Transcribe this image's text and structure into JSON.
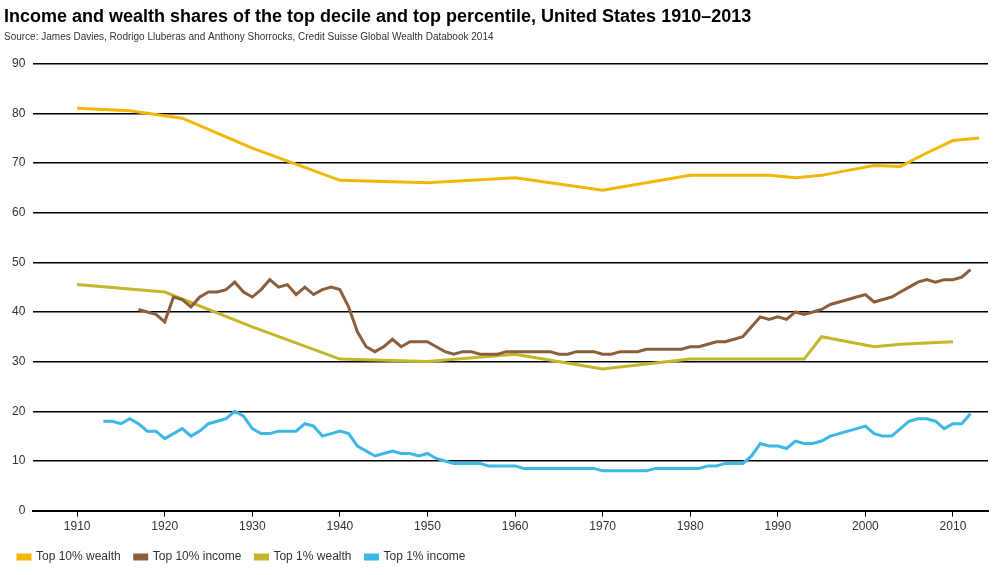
{
  "chart_data": {
    "type": "line",
    "title": "Income and wealth shares of the top decile and top percentile, United States 1910–2013",
    "subtitle": "Source: James Davies, Rodrigo Lluberas and Anthony Shorrocks, Credit Suisse Global Wealth Databook 2014",
    "xlim": [
      1905,
      2014
    ],
    "xticks": [
      1910,
      1920,
      1930,
      1940,
      1950,
      1960,
      1970,
      1980,
      1990,
      2000,
      2010
    ],
    "ylim": [
      0,
      90
    ],
    "yticks": [
      0,
      10,
      20,
      30,
      40,
      50,
      60,
      70,
      80,
      90
    ],
    "grid": true,
    "legend": "bottom",
    "series": [
      {
        "name": "Top 10% wealth",
        "color": "#f2b705",
        "x": [
          1910,
          1916,
          1922,
          1930,
          1940,
          1950,
          1960,
          1970,
          1980,
          1986,
          1989,
          1992,
          1995,
          1998,
          2001,
          2004,
          2007,
          2010,
          2013
        ],
        "values": [
          81,
          80.5,
          79,
          73,
          66.5,
          66,
          67,
          64.5,
          67.5,
          67.5,
          67.5,
          67,
          67.5,
          68.5,
          69.5,
          69.3,
          72,
          74.5,
          75
        ]
      },
      {
        "name": "Top 10% income",
        "color": "#8b5e3c",
        "x": [
          1917,
          1918,
          1919,
          1920,
          1921,
          1922,
          1923,
          1924,
          1925,
          1926,
          1927,
          1928,
          1929,
          1930,
          1931,
          1932,
          1933,
          1934,
          1935,
          1936,
          1937,
          1938,
          1939,
          1940,
          1941,
          1942,
          1943,
          1944,
          1945,
          1946,
          1947,
          1948,
          1949,
          1950,
          1951,
          1952,
          1953,
          1954,
          1955,
          1956,
          1957,
          1958,
          1959,
          1960,
          1961,
          1962,
          1963,
          1964,
          1965,
          1966,
          1967,
          1968,
          1969,
          1970,
          1971,
          1972,
          1973,
          1974,
          1975,
          1976,
          1977,
          1978,
          1979,
          1980,
          1981,
          1982,
          1983,
          1984,
          1985,
          1986,
          1987,
          1988,
          1989,
          1990,
          1991,
          1992,
          1993,
          1994,
          1995,
          1996,
          1997,
          1998,
          1999,
          2000,
          2001,
          2002,
          2003,
          2004,
          2005,
          2006,
          2007,
          2008,
          2009,
          2010,
          2011,
          2012
        ],
        "values": [
          40.5,
          40,
          39.5,
          38,
          43,
          42.5,
          41,
          43,
          44,
          44,
          44.5,
          46,
          44,
          43,
          44.5,
          46.5,
          45,
          45.5,
          43.5,
          45,
          43.5,
          44.5,
          45,
          44.5,
          41,
          36,
          33,
          32,
          33,
          34.5,
          33,
          34,
          34,
          34,
          33,
          32,
          31.5,
          32,
          32,
          31.5,
          31.5,
          31.5,
          32,
          32,
          32,
          32,
          32,
          32,
          31.5,
          31.5,
          32,
          32,
          32,
          31.5,
          31.5,
          32,
          32,
          32,
          32.5,
          32.5,
          32.5,
          32.5,
          32.5,
          33,
          33,
          33.5,
          34,
          34,
          34.5,
          35,
          37,
          39,
          38.5,
          39,
          38.5,
          40,
          39.5,
          40,
          40.5,
          41.5,
          42,
          42.5,
          43,
          43.5,
          42,
          42.5,
          43,
          44,
          45,
          46,
          46.5,
          46,
          46.5,
          46.5,
          47,
          48.5
        ]
      },
      {
        "name": "Top 1% wealth",
        "color": "#c2b728",
        "x": [
          1910,
          1920,
          1930,
          1940,
          1950,
          1960,
          1970,
          1980,
          1993,
          1995,
          2001,
          2004,
          2010
        ],
        "values": [
          45.5,
          44,
          37,
          30.5,
          30,
          31.5,
          28.5,
          30.5,
          30.5,
          35,
          33,
          33.5,
          34
        ]
      },
      {
        "name": "Top 1% income",
        "color": "#3db7e4",
        "x": [
          1913,
          1914,
          1915,
          1916,
          1917,
          1918,
          1919,
          1920,
          1921,
          1922,
          1923,
          1924,
          1925,
          1926,
          1927,
          1928,
          1929,
          1930,
          1931,
          1932,
          1933,
          1934,
          1935,
          1936,
          1937,
          1938,
          1939,
          1940,
          1941,
          1942,
          1943,
          1944,
          1945,
          1946,
          1947,
          1948,
          1949,
          1950,
          1951,
          1952,
          1953,
          1954,
          1955,
          1956,
          1957,
          1958,
          1959,
          1960,
          1961,
          1962,
          1963,
          1964,
          1965,
          1966,
          1967,
          1968,
          1969,
          1970,
          1971,
          1972,
          1973,
          1974,
          1975,
          1976,
          1977,
          1978,
          1979,
          1980,
          1981,
          1982,
          1983,
          1984,
          1985,
          1986,
          1987,
          1988,
          1989,
          1990,
          1991,
          1992,
          1993,
          1994,
          1995,
          1996,
          1997,
          1998,
          1999,
          2000,
          2001,
          2002,
          2003,
          2004,
          2005,
          2006,
          2007,
          2008,
          2009,
          2010,
          2011,
          2012
        ],
        "values": [
          18,
          18,
          17.5,
          18.5,
          17.5,
          16,
          16,
          14.5,
          15.5,
          16.5,
          15,
          16,
          17.5,
          18,
          18.5,
          20,
          19,
          16.5,
          15.5,
          15.5,
          16,
          16,
          16,
          17.5,
          17,
          15,
          15.5,
          16,
          15.5,
          13,
          12,
          11,
          11.5,
          12,
          11.5,
          11.5,
          11,
          11.5,
          10.5,
          10,
          9.5,
          9.5,
          9.5,
          9.5,
          9,
          9,
          9,
          9,
          8.5,
          8.5,
          8.5,
          8.5,
          8.5,
          8.5,
          8.5,
          8.5,
          8.5,
          8,
          8,
          8,
          8,
          8,
          8,
          8.5,
          8.5,
          8.5,
          8.5,
          8.5,
          8.5,
          9,
          9,
          9.5,
          9.5,
          9.5,
          11,
          13.5,
          13,
          13,
          12.5,
          14,
          13.5,
          13.5,
          14,
          15,
          15.5,
          16,
          16.5,
          17,
          15.5,
          15,
          15,
          16.5,
          18,
          18.5,
          18.5,
          18,
          16.5,
          17.5,
          17.5,
          19.5
        ]
      }
    ]
  }
}
